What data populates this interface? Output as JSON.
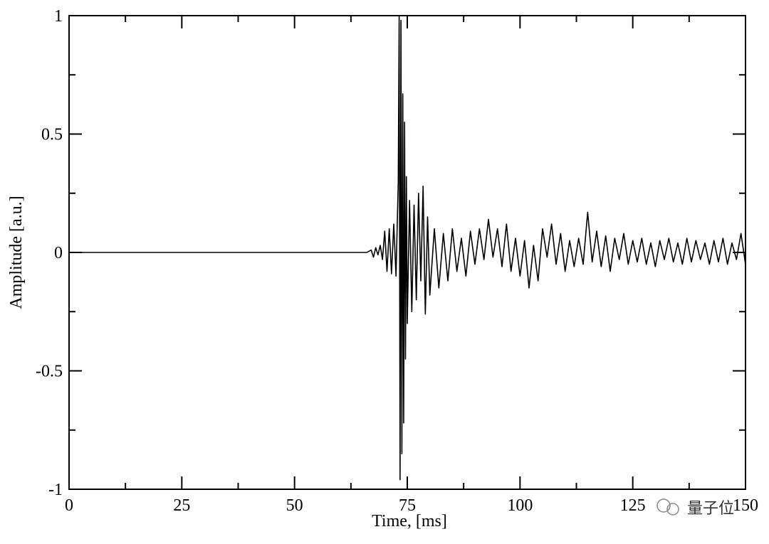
{
  "chart_data": {
    "type": "line",
    "x_label": "Time, [ms]",
    "y_label": "Amplitude [a.u.]",
    "watermark": "量子位",
    "xlim": [
      0,
      150
    ],
    "ylim": [
      -1,
      1
    ],
    "xticks": [
      0,
      25,
      50,
      75,
      100,
      125,
      150
    ],
    "yticks": [
      -1,
      -0.5,
      0,
      0.5,
      1
    ],
    "xminor_ticks": [
      12.5,
      37.5,
      62.5,
      87.5,
      112.5,
      137.5
    ],
    "yminor_ticks": [
      -0.75,
      -0.25,
      0.25,
      0.75
    ],
    "grid": false,
    "series": [
      {
        "color": "#000000",
        "x": [
          0,
          10,
          20,
          30,
          40,
          50,
          60,
          66,
          67,
          67.5,
          68,
          68.5,
          69,
          69.5,
          70,
          70.5,
          71,
          71.5,
          72,
          72.5,
          73,
          73.2,
          73.4,
          73.6,
          73.8,
          74,
          74.2,
          74.4,
          74.6,
          74.8,
          75,
          75.5,
          76,
          76.5,
          77,
          77.5,
          78,
          78.5,
          79,
          79.5,
          80,
          81,
          82,
          83,
          84,
          85,
          86,
          87,
          88,
          89,
          90,
          91,
          92,
          93,
          94,
          95,
          96,
          97,
          98,
          99,
          100,
          101,
          102,
          103,
          104,
          105,
          106,
          107,
          108,
          109,
          110,
          111,
          112,
          113,
          114,
          115,
          116,
          117,
          118,
          119,
          120,
          121,
          122,
          123,
          124,
          125,
          126,
          127,
          128,
          129,
          130,
          131,
          132,
          133,
          134,
          135,
          136,
          137,
          138,
          139,
          140,
          141,
          142,
          143,
          144,
          145,
          146,
          147,
          148,
          149,
          150
        ],
        "values": [
          0,
          0,
          0,
          0,
          0,
          0,
          0,
          0,
          0.01,
          -0.02,
          0.02,
          -0.01,
          0.03,
          -0.03,
          0.09,
          -0.08,
          0.1,
          -0.09,
          0.12,
          -0.1,
          0.3,
          1,
          -0.96,
          0.98,
          -0.85,
          0.67,
          -0.72,
          0.55,
          -0.45,
          0.32,
          -0.3,
          0.22,
          -0.25,
          0.2,
          -0.2,
          0.25,
          -0.12,
          0.28,
          -0.26,
          0.15,
          -0.18,
          0.1,
          -0.15,
          0.08,
          -0.12,
          0.1,
          -0.08,
          0.06,
          -0.1,
          0.09,
          -0.05,
          0.1,
          -0.03,
          0.14,
          -0.02,
          0.1,
          -0.06,
          0.12,
          -0.08,
          0.06,
          -0.1,
          0.05,
          -0.15,
          0.03,
          -0.12,
          0.1,
          -0.02,
          0.12,
          -0.05,
          0.08,
          -0.08,
          0.05,
          -0.06,
          0.06,
          -0.05,
          0.17,
          -0.04,
          0.09,
          -0.06,
          0.07,
          -0.08,
          0.06,
          -0.03,
          0.08,
          -0.05,
          0.05,
          -0.04,
          0.06,
          -0.05,
          0.04,
          -0.06,
          0.05,
          -0.03,
          0.06,
          -0.04,
          0.04,
          -0.05,
          0.06,
          -0.04,
          0.05,
          -0.03,
          0.04,
          -0.05,
          0.05,
          -0.04,
          0.06,
          -0.05,
          0.04,
          -0.03,
          0.08,
          -0.05
        ]
      }
    ]
  }
}
